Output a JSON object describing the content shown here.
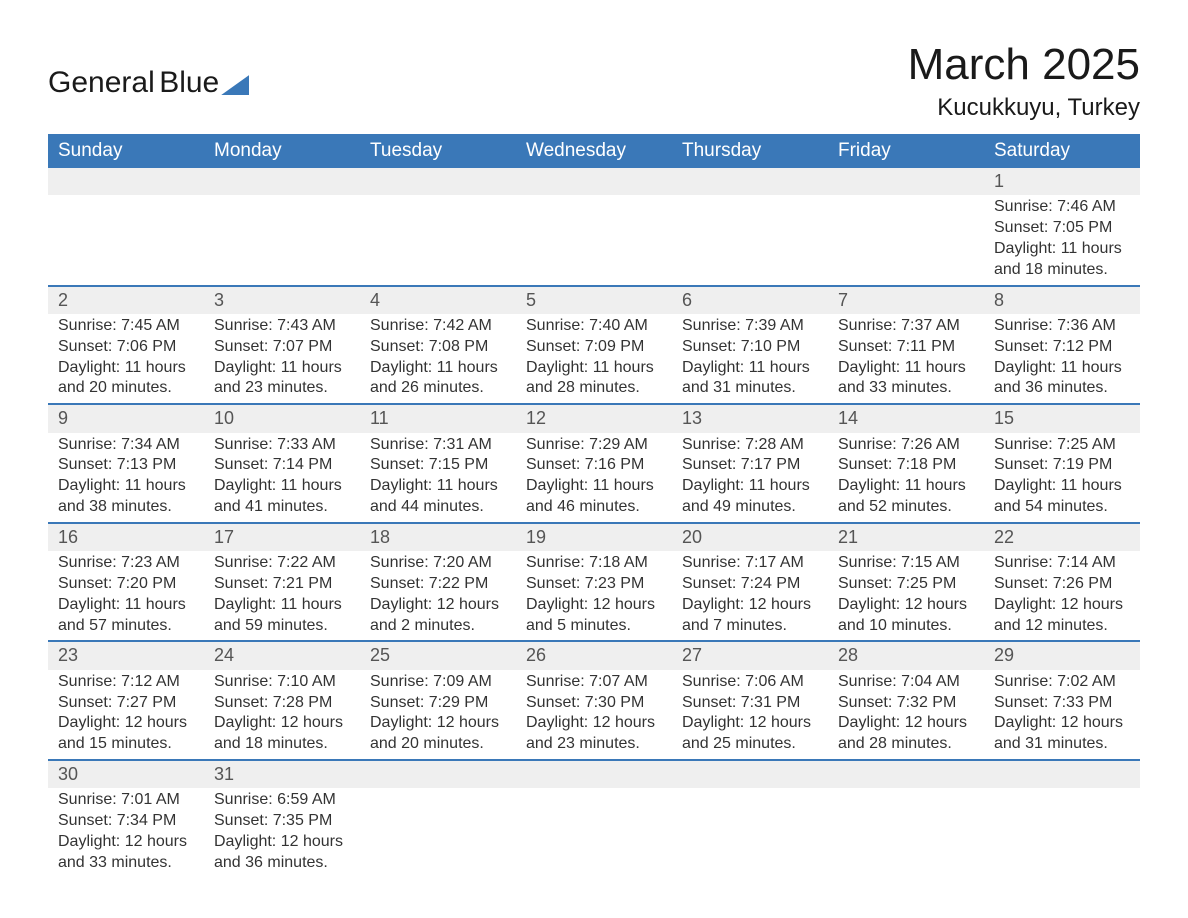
{
  "logo": {
    "word1": "General",
    "word2": "Blue"
  },
  "title": "March 2025",
  "location": "Kucukkuyu, Turkey",
  "colors": {
    "header_bg": "#3a78b8",
    "header_text": "#ffffff",
    "daynum_bg": "#efefef",
    "daynum_text": "#555555",
    "body_text": "#333333",
    "row_divider": "#3a78b8",
    "page_bg": "#ffffff"
  },
  "typography": {
    "title_fontsize": 44,
    "location_fontsize": 24,
    "weekday_fontsize": 19,
    "daynum_fontsize": 18,
    "cell_fontsize": 16
  },
  "weekdays": [
    "Sunday",
    "Monday",
    "Tuesday",
    "Wednesday",
    "Thursday",
    "Friday",
    "Saturday"
  ],
  "labels": {
    "sunrise": "Sunrise: ",
    "sunset": "Sunset: ",
    "daylight": "Daylight: "
  },
  "weeks": [
    [
      null,
      null,
      null,
      null,
      null,
      null,
      {
        "d": "1",
        "sr": "7:46 AM",
        "ss": "7:05 PM",
        "dl": "11 hours and 18 minutes."
      }
    ],
    [
      {
        "d": "2",
        "sr": "7:45 AM",
        "ss": "7:06 PM",
        "dl": "11 hours and 20 minutes."
      },
      {
        "d": "3",
        "sr": "7:43 AM",
        "ss": "7:07 PM",
        "dl": "11 hours and 23 minutes."
      },
      {
        "d": "4",
        "sr": "7:42 AM",
        "ss": "7:08 PM",
        "dl": "11 hours and 26 minutes."
      },
      {
        "d": "5",
        "sr": "7:40 AM",
        "ss": "7:09 PM",
        "dl": "11 hours and 28 minutes."
      },
      {
        "d": "6",
        "sr": "7:39 AM",
        "ss": "7:10 PM",
        "dl": "11 hours and 31 minutes."
      },
      {
        "d": "7",
        "sr": "7:37 AM",
        "ss": "7:11 PM",
        "dl": "11 hours and 33 minutes."
      },
      {
        "d": "8",
        "sr": "7:36 AM",
        "ss": "7:12 PM",
        "dl": "11 hours and 36 minutes."
      }
    ],
    [
      {
        "d": "9",
        "sr": "7:34 AM",
        "ss": "7:13 PM",
        "dl": "11 hours and 38 minutes."
      },
      {
        "d": "10",
        "sr": "7:33 AM",
        "ss": "7:14 PM",
        "dl": "11 hours and 41 minutes."
      },
      {
        "d": "11",
        "sr": "7:31 AM",
        "ss": "7:15 PM",
        "dl": "11 hours and 44 minutes."
      },
      {
        "d": "12",
        "sr": "7:29 AM",
        "ss": "7:16 PM",
        "dl": "11 hours and 46 minutes."
      },
      {
        "d": "13",
        "sr": "7:28 AM",
        "ss": "7:17 PM",
        "dl": "11 hours and 49 minutes."
      },
      {
        "d": "14",
        "sr": "7:26 AM",
        "ss": "7:18 PM",
        "dl": "11 hours and 52 minutes."
      },
      {
        "d": "15",
        "sr": "7:25 AM",
        "ss": "7:19 PM",
        "dl": "11 hours and 54 minutes."
      }
    ],
    [
      {
        "d": "16",
        "sr": "7:23 AM",
        "ss": "7:20 PM",
        "dl": "11 hours and 57 minutes."
      },
      {
        "d": "17",
        "sr": "7:22 AM",
        "ss": "7:21 PM",
        "dl": "11 hours and 59 minutes."
      },
      {
        "d": "18",
        "sr": "7:20 AM",
        "ss": "7:22 PM",
        "dl": "12 hours and 2 minutes."
      },
      {
        "d": "19",
        "sr": "7:18 AM",
        "ss": "7:23 PM",
        "dl": "12 hours and 5 minutes."
      },
      {
        "d": "20",
        "sr": "7:17 AM",
        "ss": "7:24 PM",
        "dl": "12 hours and 7 minutes."
      },
      {
        "d": "21",
        "sr": "7:15 AM",
        "ss": "7:25 PM",
        "dl": "12 hours and 10 minutes."
      },
      {
        "d": "22",
        "sr": "7:14 AM",
        "ss": "7:26 PM",
        "dl": "12 hours and 12 minutes."
      }
    ],
    [
      {
        "d": "23",
        "sr": "7:12 AM",
        "ss": "7:27 PM",
        "dl": "12 hours and 15 minutes."
      },
      {
        "d": "24",
        "sr": "7:10 AM",
        "ss": "7:28 PM",
        "dl": "12 hours and 18 minutes."
      },
      {
        "d": "25",
        "sr": "7:09 AM",
        "ss": "7:29 PM",
        "dl": "12 hours and 20 minutes."
      },
      {
        "d": "26",
        "sr": "7:07 AM",
        "ss": "7:30 PM",
        "dl": "12 hours and 23 minutes."
      },
      {
        "d": "27",
        "sr": "7:06 AM",
        "ss": "7:31 PM",
        "dl": "12 hours and 25 minutes."
      },
      {
        "d": "28",
        "sr": "7:04 AM",
        "ss": "7:32 PM",
        "dl": "12 hours and 28 minutes."
      },
      {
        "d": "29",
        "sr": "7:02 AM",
        "ss": "7:33 PM",
        "dl": "12 hours and 31 minutes."
      }
    ],
    [
      {
        "d": "30",
        "sr": "7:01 AM",
        "ss": "7:34 PM",
        "dl": "12 hours and 33 minutes."
      },
      {
        "d": "31",
        "sr": "6:59 AM",
        "ss": "7:35 PM",
        "dl": "12 hours and 36 minutes."
      },
      null,
      null,
      null,
      null,
      null
    ]
  ]
}
